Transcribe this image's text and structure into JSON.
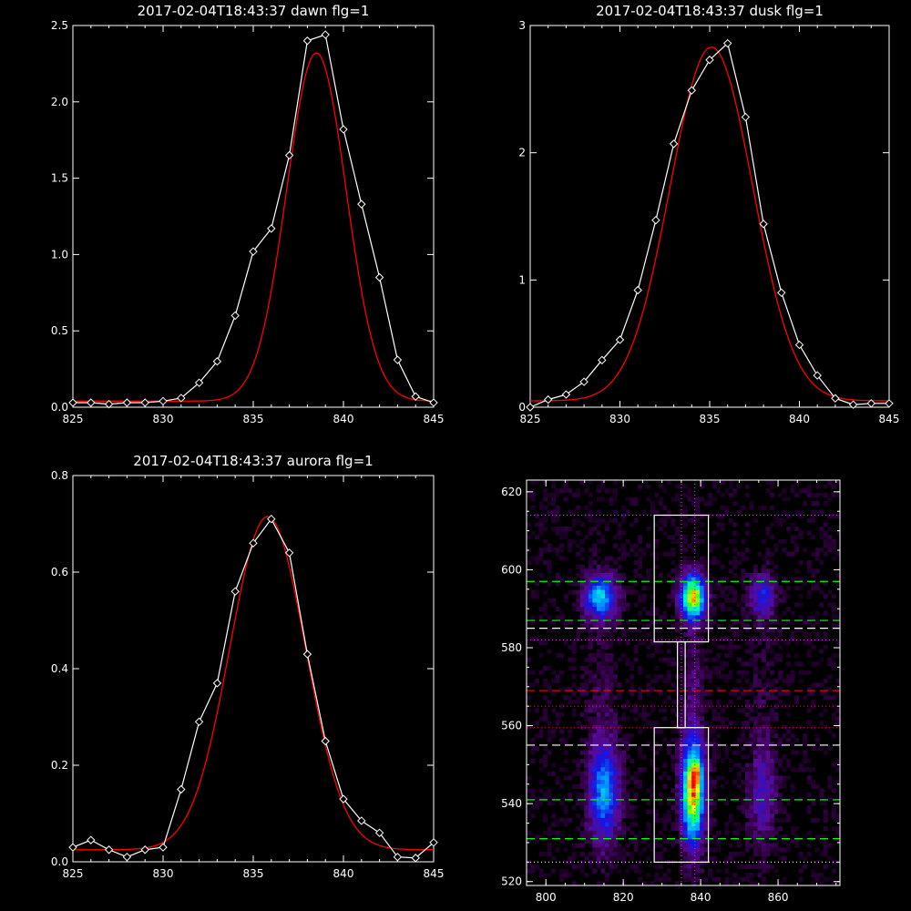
{
  "chart_data": [
    {
      "type": "line",
      "title": "2017-02-04T18:43:37 dawn flg=1",
      "xlim": [
        825,
        845
      ],
      "ylim": [
        0,
        2.5
      ],
      "xticks": [
        825,
        830,
        835,
        840,
        845
      ],
      "yticks": [
        0.0,
        0.5,
        1.0,
        1.5,
        2.0,
        2.5
      ],
      "ytick_labels": [
        "0.0",
        "0.5",
        "1.0",
        "1.5",
        "2.0",
        "2.5"
      ],
      "series": [
        {
          "color": "#ffffff",
          "marker": "diamond",
          "x": [
            825,
            826,
            827,
            828,
            829,
            830,
            831,
            832,
            833,
            834,
            835,
            836,
            837,
            838,
            839,
            840,
            841,
            842,
            843,
            844,
            845
          ],
          "y": [
            0.03,
            0.03,
            0.02,
            0.03,
            0.03,
            0.04,
            0.06,
            0.16,
            0.3,
            0.6,
            1.02,
            1.17,
            1.65,
            2.4,
            2.44,
            1.82,
            1.33,
            0.85,
            0.31,
            0.07,
            0.03
          ]
        },
        {
          "color": "#ff0000",
          "type": "gaussian",
          "amplitude": 2.28,
          "center": 838.5,
          "sigma": 1.65,
          "offset": 0.04
        }
      ]
    },
    {
      "type": "line",
      "title": "2017-02-04T18:43:37 dusk flg=1",
      "xlim": [
        825,
        845
      ],
      "ylim": [
        0,
        3
      ],
      "xticks": [
        825,
        830,
        835,
        840,
        845
      ],
      "yticks": [
        0,
        1,
        2,
        3
      ],
      "ytick_labels": [
        "0",
        "1",
        "2",
        "3"
      ],
      "series": [
        {
          "color": "#ffffff",
          "marker": "diamond",
          "x": [
            825,
            826,
            827,
            828,
            829,
            830,
            831,
            832,
            833,
            834,
            835,
            836,
            837,
            838,
            839,
            840,
            841,
            842,
            843,
            844,
            845
          ],
          "y": [
            0.0,
            0.06,
            0.1,
            0.2,
            0.37,
            0.53,
            0.92,
            1.47,
            2.07,
            2.49,
            2.73,
            2.86,
            2.28,
            1.44,
            0.9,
            0.49,
            0.25,
            0.07,
            0.02,
            0.03,
            0.03
          ]
        },
        {
          "color": "#ff0000",
          "type": "gaussian",
          "amplitude": 2.78,
          "center": 835.1,
          "sigma": 2.3,
          "offset": 0.05
        }
      ]
    },
    {
      "type": "line",
      "title": "2017-02-04T18:43:37 aurora flg=1",
      "xlim": [
        825,
        845
      ],
      "ylim": [
        0,
        0.8
      ],
      "xticks": [
        825,
        830,
        835,
        840,
        845
      ],
      "yticks": [
        0.0,
        0.2,
        0.4,
        0.6,
        0.8
      ],
      "ytick_labels": [
        "0.0",
        "0.2",
        "0.4",
        "0.6",
        "0.8"
      ],
      "series": [
        {
          "color": "#ffffff",
          "marker": "diamond",
          "x": [
            825,
            826,
            827,
            828,
            829,
            830,
            831,
            832,
            833,
            834,
            835,
            836,
            837,
            838,
            839,
            840,
            841,
            842,
            843,
            844,
            845
          ],
          "y": [
            0.03,
            0.045,
            0.025,
            0.01,
            0.025,
            0.03,
            0.15,
            0.29,
            0.37,
            0.56,
            0.66,
            0.71,
            0.64,
            0.43,
            0.25,
            0.13,
            0.085,
            0.06,
            0.01,
            0.008,
            0.04
          ]
        },
        {
          "color": "#ff0000",
          "type": "gaussian",
          "amplitude": 0.69,
          "center": 835.8,
          "sigma": 2.1,
          "offset": 0.025
        }
      ]
    },
    {
      "type": "heatmap",
      "title": "",
      "xlim": [
        795,
        876
      ],
      "ylim": [
        519,
        623
      ],
      "xticks": [
        800,
        820,
        840,
        860
      ],
      "yticks": [
        520,
        540,
        560,
        580,
        600,
        620
      ],
      "colormap": "rainbow",
      "blobs": [
        {
          "x": 838,
          "y": 593,
          "sx": 2.2,
          "sy": 4,
          "amp": 0.9
        },
        {
          "x": 838,
          "y": 543,
          "sx": 2.0,
          "sy": 9,
          "amp": 0.95
        },
        {
          "x": 839,
          "y": 548,
          "sx": 1.0,
          "sy": 2,
          "amp": 0.25
        },
        {
          "x": 814,
          "y": 593,
          "sx": 3.0,
          "sy": 4,
          "amp": 0.55
        },
        {
          "x": 815,
          "y": 543,
          "sx": 2.8,
          "sy": 9,
          "amp": 0.5
        },
        {
          "x": 856,
          "y": 593,
          "sx": 2.2,
          "sy": 4,
          "amp": 0.35
        },
        {
          "x": 856,
          "y": 543,
          "sx": 2.5,
          "sy": 9,
          "amp": 0.25
        },
        {
          "x": 838,
          "y": 570,
          "sx": 2.0,
          "sy": 10,
          "amp": 0.12
        },
        {
          "x": 814,
          "y": 570,
          "sx": 3.0,
          "sy": 10,
          "amp": 0.08
        },
        {
          "x": 856,
          "y": 570,
          "sx": 2.5,
          "sy": 10,
          "amp": 0.06
        }
      ],
      "overlays": {
        "hlines": [
          {
            "y": 614,
            "color": "#ff00ff",
            "style": "dotted"
          },
          {
            "y": 597,
            "color": "#00ff00",
            "style": "dashed"
          },
          {
            "y": 587,
            "color": "#00ff00",
            "style": "dashed"
          },
          {
            "y": 585,
            "color": "#ffffff",
            "style": "dashed"
          },
          {
            "y": 582,
            "color": "#ff00ff",
            "style": "dotted"
          },
          {
            "y": 569,
            "color": "#ff0000",
            "style": "dashed"
          },
          {
            "y": 565,
            "color": "#ff0000",
            "style": "dotted"
          },
          {
            "y": 559.5,
            "color": "#ff0000",
            "style": "dotted"
          },
          {
            "y": 555,
            "color": "#ffffff",
            "style": "dashed"
          },
          {
            "y": 541,
            "color": "#00ff00",
            "style": "dashed"
          },
          {
            "y": 531,
            "color": "#00ff00",
            "style": "dashed"
          },
          {
            "y": 525,
            "color": "#ffffff",
            "style": "dotted"
          }
        ],
        "vlines": [
          {
            "x": 835,
            "color": "#ff00ff",
            "style": "dotted"
          },
          {
            "x": 838.5,
            "color": "#ff00ff",
            "style": "dotted"
          }
        ],
        "rects": [
          {
            "x0": 828,
            "x1": 842,
            "y0": 581.5,
            "y1": 614
          },
          {
            "x0": 828,
            "x1": 842,
            "y0": 525,
            "y1": 559.5
          },
          {
            "x0": 834,
            "x1": 836,
            "y0": 559.5,
            "y1": 581.5
          }
        ]
      }
    }
  ]
}
